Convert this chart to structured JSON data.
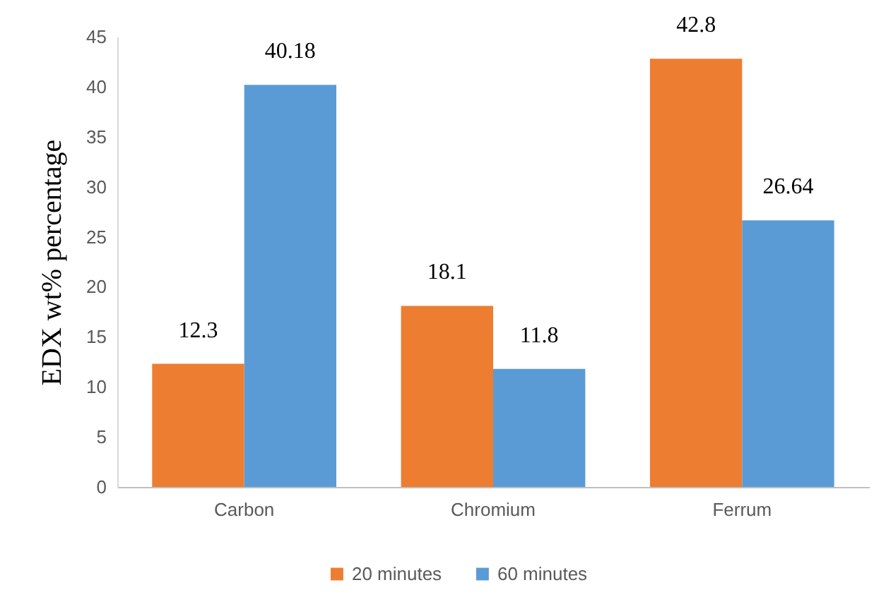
{
  "chart_data": {
    "type": "bar",
    "ylabel": "EDX wt% percentage",
    "categories": [
      "Carbon",
      "Chromium",
      "Ferrum"
    ],
    "series": [
      {
        "name": "20 minutes",
        "color": "#ed7d31",
        "values": [
          12.3,
          18.1,
          42.8
        ]
      },
      {
        "name": "60 minutes",
        "color": "#5b9bd5",
        "values": [
          40.18,
          11.8,
          26.64
        ]
      }
    ],
    "ylim": [
      0,
      45
    ],
    "yticks": [
      0,
      5,
      10,
      15,
      20,
      25,
      30,
      35,
      40,
      45
    ],
    "data_labels": true,
    "grid": false,
    "legend": "bottom"
  }
}
